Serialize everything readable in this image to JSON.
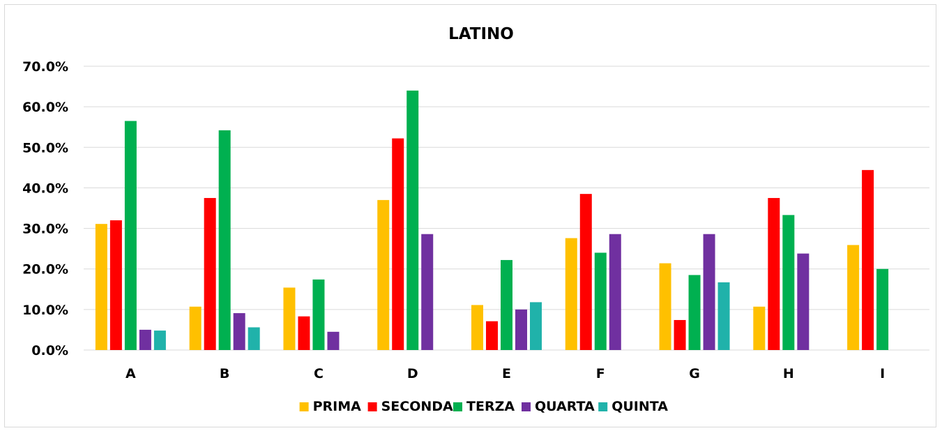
{
  "chart_data": {
    "type": "bar",
    "title": "LATINO",
    "xlabel": "",
    "ylabel": "",
    "ylim": [
      0,
      0.7
    ],
    "ytick_values": [
      0,
      0.1,
      0.2,
      0.3,
      0.4,
      0.5,
      0.6,
      0.7
    ],
    "ytick_labels": [
      "0.0%",
      "10.0%",
      "20.0%",
      "30.0%",
      "40.0%",
      "50.0%",
      "60.0%",
      "70.0%"
    ],
    "grid": true,
    "legend_position": "bottom",
    "categories": [
      "A",
      "B",
      "C",
      "D",
      "E",
      "F",
      "G",
      "H",
      "I"
    ],
    "series": [
      {
        "name": "PRIMA",
        "color": "#FFC000",
        "values": [
          0.311,
          0.107,
          0.154,
          0.37,
          0.111,
          0.276,
          0.214,
          0.107,
          0.259
        ]
      },
      {
        "name": "SECONDA",
        "color": "#FF0000",
        "values": [
          0.32,
          0.375,
          0.083,
          0.522,
          0.071,
          0.385,
          0.074,
          0.375,
          0.444
        ]
      },
      {
        "name": "TERZA",
        "color": "#00B050",
        "values": [
          0.565,
          0.542,
          0.174,
          0.64,
          0.222,
          0.24,
          0.185,
          0.333,
          0.2
        ]
      },
      {
        "name": "QUARTA",
        "color": "#7030A0",
        "values": [
          0.05,
          0.091,
          0.045,
          0.286,
          0.1,
          0.286,
          0.286,
          0.238,
          null
        ]
      },
      {
        "name": "QUINTA",
        "color": "#20B2AA",
        "values": [
          0.048,
          0.056,
          null,
          null,
          0.118,
          null,
          0.167,
          null,
          null
        ]
      }
    ]
  }
}
